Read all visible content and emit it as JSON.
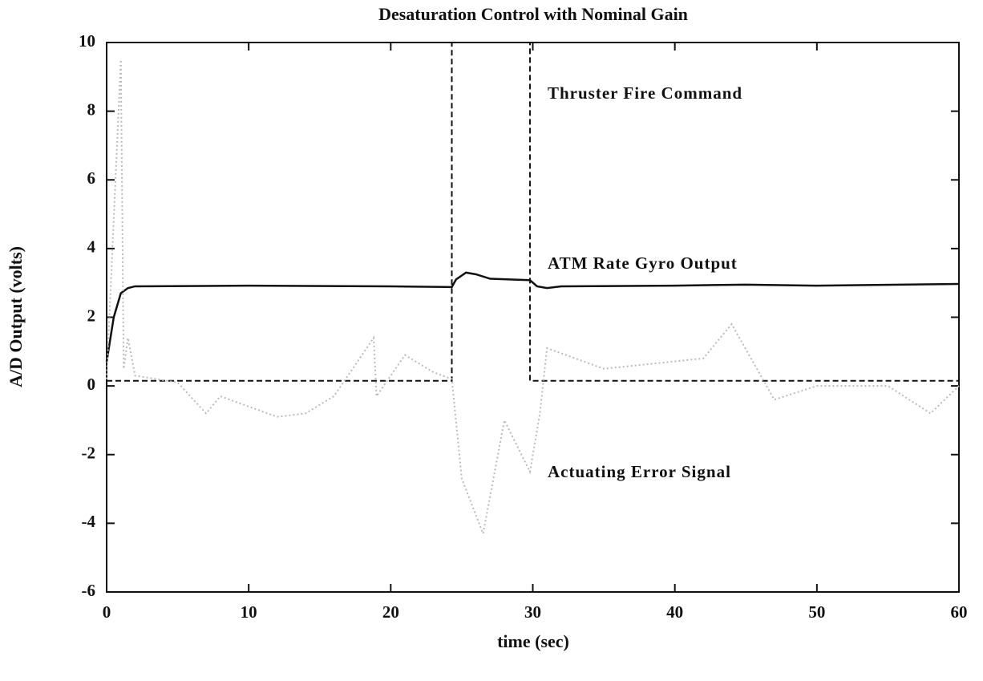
{
  "chart_data": {
    "type": "line",
    "title": "Desaturation Control with Nominal Gain",
    "xlabel": "time (sec)",
    "ylabel": "A/D Output (volts)",
    "xlim": [
      0,
      60
    ],
    "xticks": [
      0,
      10,
      20,
      30,
      40,
      50,
      60
    ],
    "ylim": [
      -6,
      10
    ],
    "yticks": [
      -6,
      -4,
      -2,
      0,
      2,
      4,
      6,
      8,
      10
    ],
    "grid": false,
    "series": [
      {
        "name": "Thruster Fire Command",
        "color": "#111111",
        "dash": "dashed",
        "x": [
          0,
          24.3,
          24.3,
          29.8,
          29.8,
          60
        ],
        "values": [
          0.15,
          0.15,
          10,
          10,
          0.15,
          0.15
        ]
      },
      {
        "name": "ATM Rate Gyro Output",
        "color": "#111111",
        "dash": "solid",
        "x": [
          0,
          0.5,
          1,
          1.5,
          2,
          10,
          20,
          24.3,
          24.6,
          25.3,
          26,
          27,
          29.8,
          30.3,
          31,
          32,
          40,
          45,
          50,
          60
        ],
        "values": [
          0.7,
          2.0,
          2.7,
          2.85,
          2.9,
          2.92,
          2.9,
          2.88,
          3.1,
          3.3,
          3.25,
          3.12,
          3.08,
          2.9,
          2.85,
          2.9,
          2.92,
          2.95,
          2.92,
          2.97
        ]
      },
      {
        "name": "Actuating Error Signal",
        "color": "#bbbbbb",
        "dash": "dotted",
        "x": [
          0,
          1,
          1.2,
          1.5,
          2,
          5,
          7,
          8,
          12,
          14,
          16,
          18.8,
          19,
          21,
          23,
          24.3,
          25,
          26.5,
          28,
          29.8,
          30.5,
          31,
          35,
          42,
          44,
          47,
          50,
          55,
          58,
          60
        ],
        "values": [
          0.2,
          9.5,
          0.5,
          1.4,
          0.3,
          0.1,
          -0.8,
          -0.3,
          -0.9,
          -0.8,
          -0.3,
          1.4,
          -0.3,
          0.9,
          0.4,
          0.2,
          -2.7,
          -4.3,
          -1,
          -2.5,
          -0.8,
          1.1,
          0.5,
          0.8,
          1.8,
          -0.4,
          0,
          0,
          -0.8,
          0
        ]
      }
    ]
  }
}
